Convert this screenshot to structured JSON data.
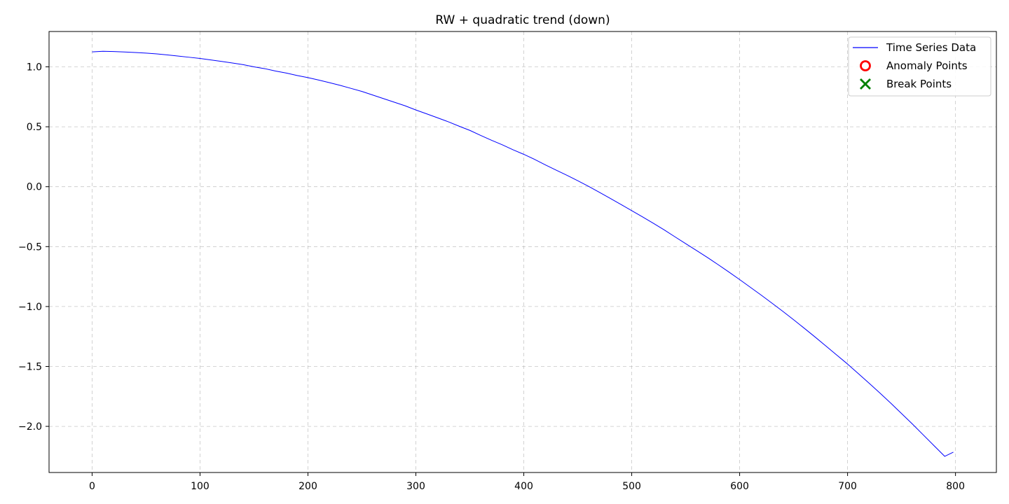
{
  "chart_data": {
    "type": "line",
    "title": "RW + quadratic trend (down)",
    "xlabel": "",
    "ylabel": "",
    "xlim": [
      -39.9,
      837.9
    ],
    "ylim": [
      -2.385,
      1.295
    ],
    "xticks": [
      0,
      100,
      200,
      300,
      400,
      500,
      600,
      700,
      800
    ],
    "yticks": [
      1.0,
      0.5,
      0.0,
      -0.5,
      -1.0,
      -1.5,
      -2.0
    ],
    "ytick_labels": [
      "1.0",
      "0.5",
      "0.0",
      "−0.5",
      "−1.0",
      "−1.5",
      "−2.0"
    ],
    "xtick_labels": [
      "0",
      "100",
      "200",
      "300",
      "400",
      "500",
      "600",
      "700",
      "800"
    ],
    "grid": true,
    "legend_position": "top-right",
    "series": [
      {
        "name": "Time Series Data",
        "color": "#0000ff",
        "kind": "line",
        "x": [
          0,
          10,
          20,
          30,
          40,
          50,
          60,
          70,
          80,
          90,
          100,
          110,
          120,
          130,
          140,
          150,
          160,
          170,
          180,
          190,
          200,
          210,
          220,
          230,
          240,
          250,
          260,
          270,
          280,
          290,
          300,
          310,
          320,
          330,
          340,
          350,
          360,
          370,
          380,
          390,
          400,
          410,
          420,
          430,
          440,
          450,
          460,
          470,
          480,
          490,
          500,
          510,
          520,
          530,
          540,
          550,
          560,
          570,
          580,
          590,
          600,
          610,
          620,
          630,
          640,
          650,
          660,
          670,
          680,
          690,
          700,
          710,
          720,
          730,
          740,
          750,
          760,
          770,
          780,
          790,
          798
        ],
        "y": [
          1.125,
          1.13,
          1.128,
          1.124,
          1.12,
          1.115,
          1.108,
          1.099,
          1.09,
          1.08,
          1.07,
          1.058,
          1.045,
          1.032,
          1.018,
          1.0,
          0.985,
          0.965,
          0.948,
          0.928,
          0.91,
          0.89,
          0.868,
          0.845,
          0.82,
          0.795,
          0.765,
          0.735,
          0.705,
          0.675,
          0.64,
          0.608,
          0.575,
          0.542,
          0.505,
          0.47,
          0.428,
          0.388,
          0.35,
          0.308,
          0.27,
          0.228,
          0.182,
          0.138,
          0.095,
          0.05,
          0.003,
          -0.047,
          -0.097,
          -0.148,
          -0.2,
          -0.252,
          -0.305,
          -0.36,
          -0.418,
          -0.475,
          -0.532,
          -0.59,
          -0.65,
          -0.712,
          -0.775,
          -0.84,
          -0.905,
          -0.972,
          -1.04,
          -1.11,
          -1.182,
          -1.255,
          -1.33,
          -1.405,
          -1.48,
          -1.56,
          -1.64,
          -1.722,
          -1.806,
          -1.893,
          -1.98,
          -2.07,
          -2.16,
          -2.25,
          -2.215
        ]
      },
      {
        "name": "Anomaly Points",
        "color": "#ff0000",
        "kind": "marker-circle",
        "x": [],
        "y": []
      },
      {
        "name": "Break Points",
        "color": "#008000",
        "kind": "marker-x",
        "x": [],
        "y": []
      }
    ]
  }
}
